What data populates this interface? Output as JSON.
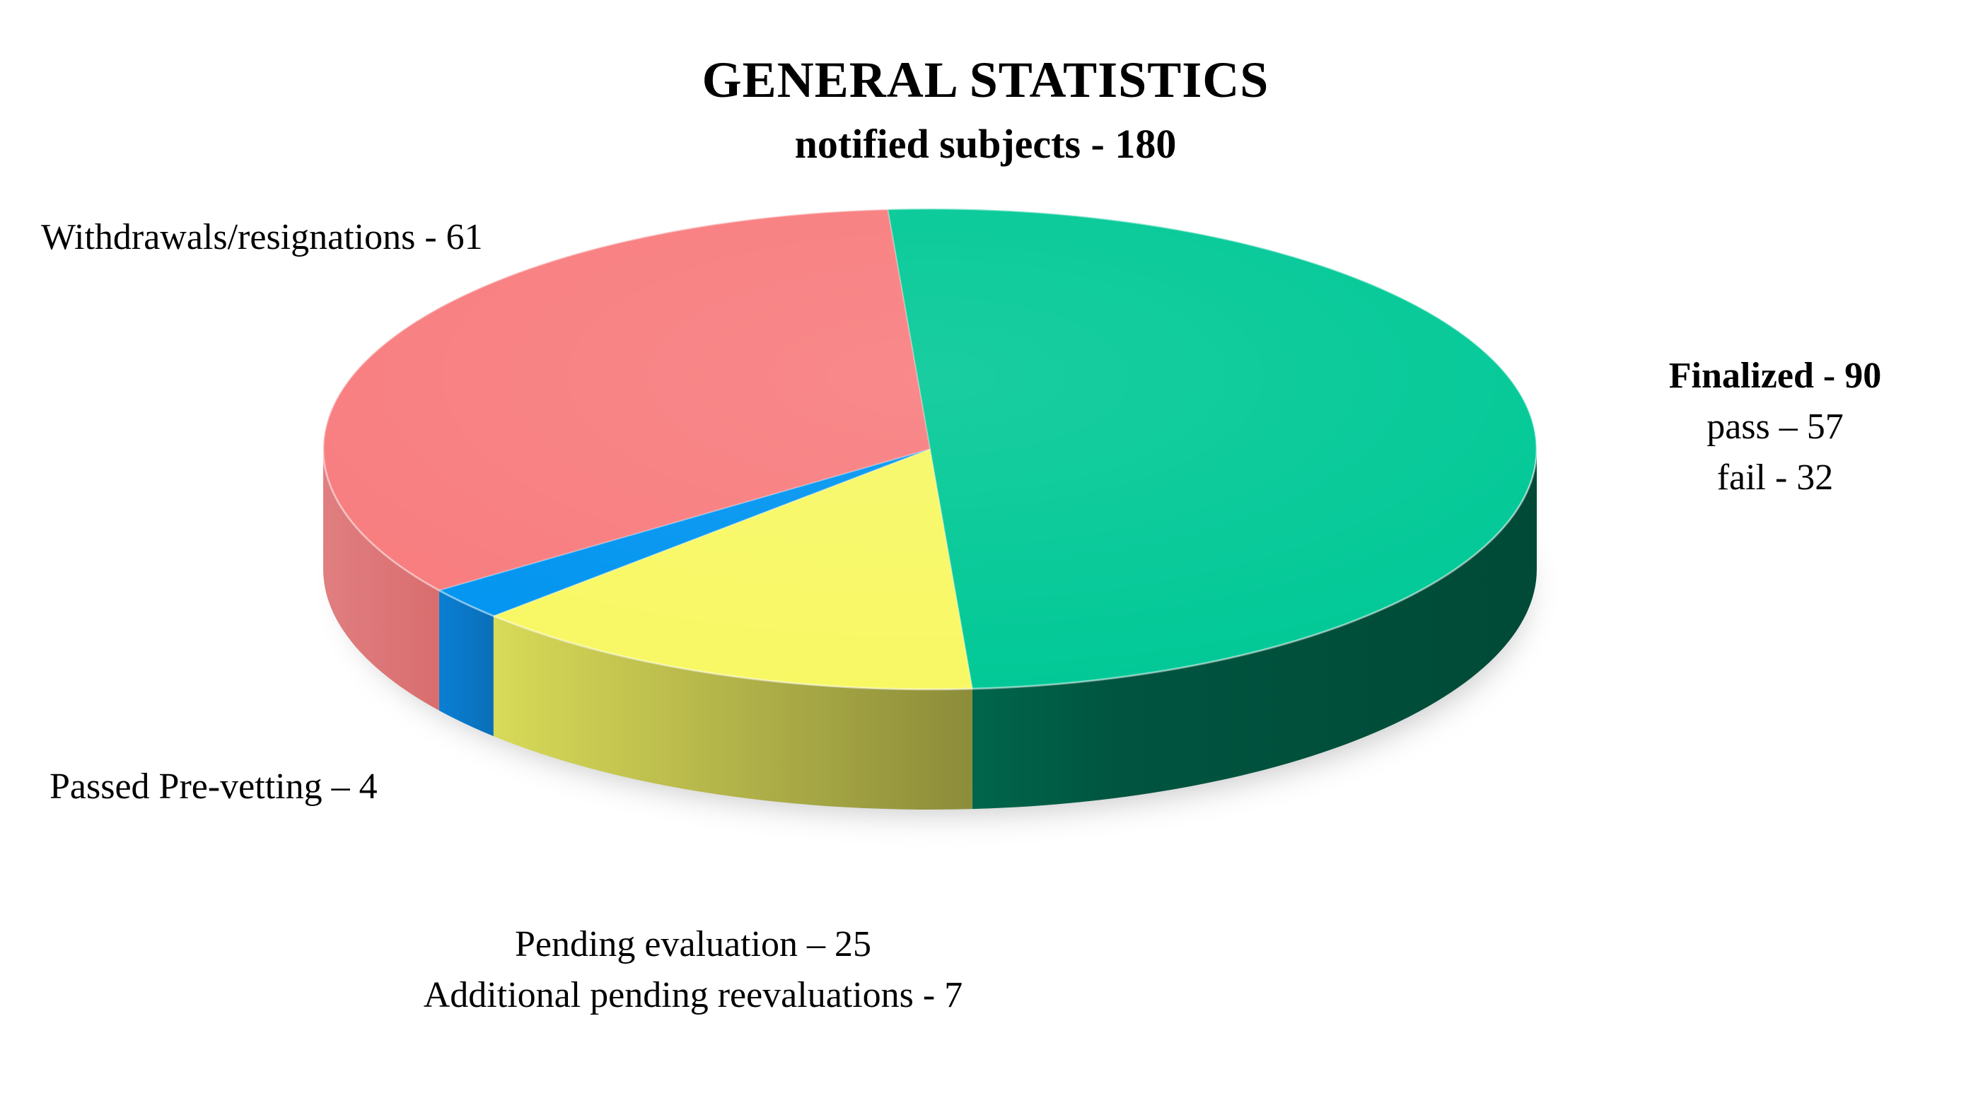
{
  "chart_data": {
    "type": "pie",
    "title": "GENERAL STATISTICS",
    "subtitle": "notified subjects - 180",
    "slices": [
      {
        "name": "Finalized",
        "value": 90,
        "color": "#00C896",
        "side_color": "#007A5A"
      },
      {
        "name": "Pending evaluation",
        "value": 25,
        "color": "#F8F864",
        "side_color": "#B3B44A"
      },
      {
        "name": "Passed Pre-vetting",
        "value": 4,
        "color": "#0094F0",
        "side_color": "#0A6FB8"
      },
      {
        "name": "Withdrawals/resignations",
        "value": 61,
        "color": "#F87C7E",
        "side_color": "#D96D6E"
      }
    ],
    "labels": {
      "finalized": {
        "title": "Finalized - 90",
        "pass": "pass – 57",
        "fail": "fail - 32"
      },
      "pending": {
        "line1": "Pending evaluation – 25",
        "line2": "Additional pending reevaluations - 7"
      },
      "prevetting": "Passed Pre-vetting – 4",
      "withdrawals": "Withdrawals/resignations - 61"
    },
    "legend": "none"
  }
}
